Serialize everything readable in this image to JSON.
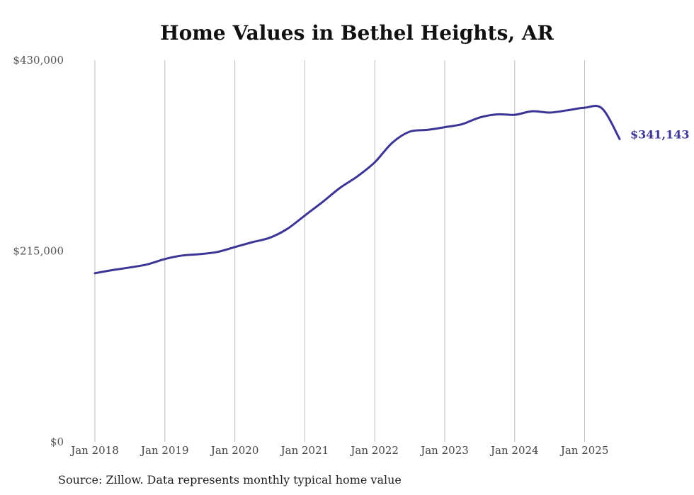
{
  "chart_data": {
    "type": "line",
    "title": "Home Values in Bethel Heights, AR",
    "xlabel": "",
    "ylabel": "",
    "ylim": [
      0,
      430000
    ],
    "y_ticks": [
      "$0",
      "$215,000",
      "$430,000"
    ],
    "y_tick_values": [
      0,
      215000,
      430000
    ],
    "x_ticks": [
      "Jan 2018",
      "Jan 2019",
      "Jan 2020",
      "Jan 2021",
      "Jan 2022",
      "Jan 2023",
      "Jan 2024",
      "Jan 2025"
    ],
    "x_range": [
      "2018-01",
      "2025-07"
    ],
    "grid": "vertical lines at each year tick",
    "line_color": "#3c3596",
    "end_label": "$341,143",
    "series": [
      {
        "x": [
          "2018-01",
          "2018-04",
          "2018-07",
          "2018-10",
          "2019-01",
          "2019-04",
          "2019-07",
          "2019-10",
          "2020-01",
          "2020-04",
          "2020-07",
          "2020-10",
          "2021-01",
          "2021-04",
          "2021-07",
          "2021-10",
          "2022-01",
          "2022-04",
          "2022-07",
          "2022-10",
          "2023-01",
          "2023-04",
          "2023-07",
          "2023-10",
          "2024-01",
          "2024-04",
          "2024-07",
          "2024-10",
          "2025-01",
          "2025-04",
          "2025-07"
        ],
        "y": [
          190000,
          193500,
          196500,
          200000,
          206000,
          210000,
          211500,
          214000,
          219500,
          225000,
          230000,
          240000,
          255000,
          270000,
          286000,
          299000,
          315000,
          337000,
          349500,
          351500,
          354500,
          358000,
          365500,
          369000,
          368500,
          372500,
          371000,
          373500,
          376500,
          375500,
          341143
        ],
        "values_note_free": true
      }
    ]
  },
  "source_text": "Source: Zillow. Data represents monthly typical home value"
}
